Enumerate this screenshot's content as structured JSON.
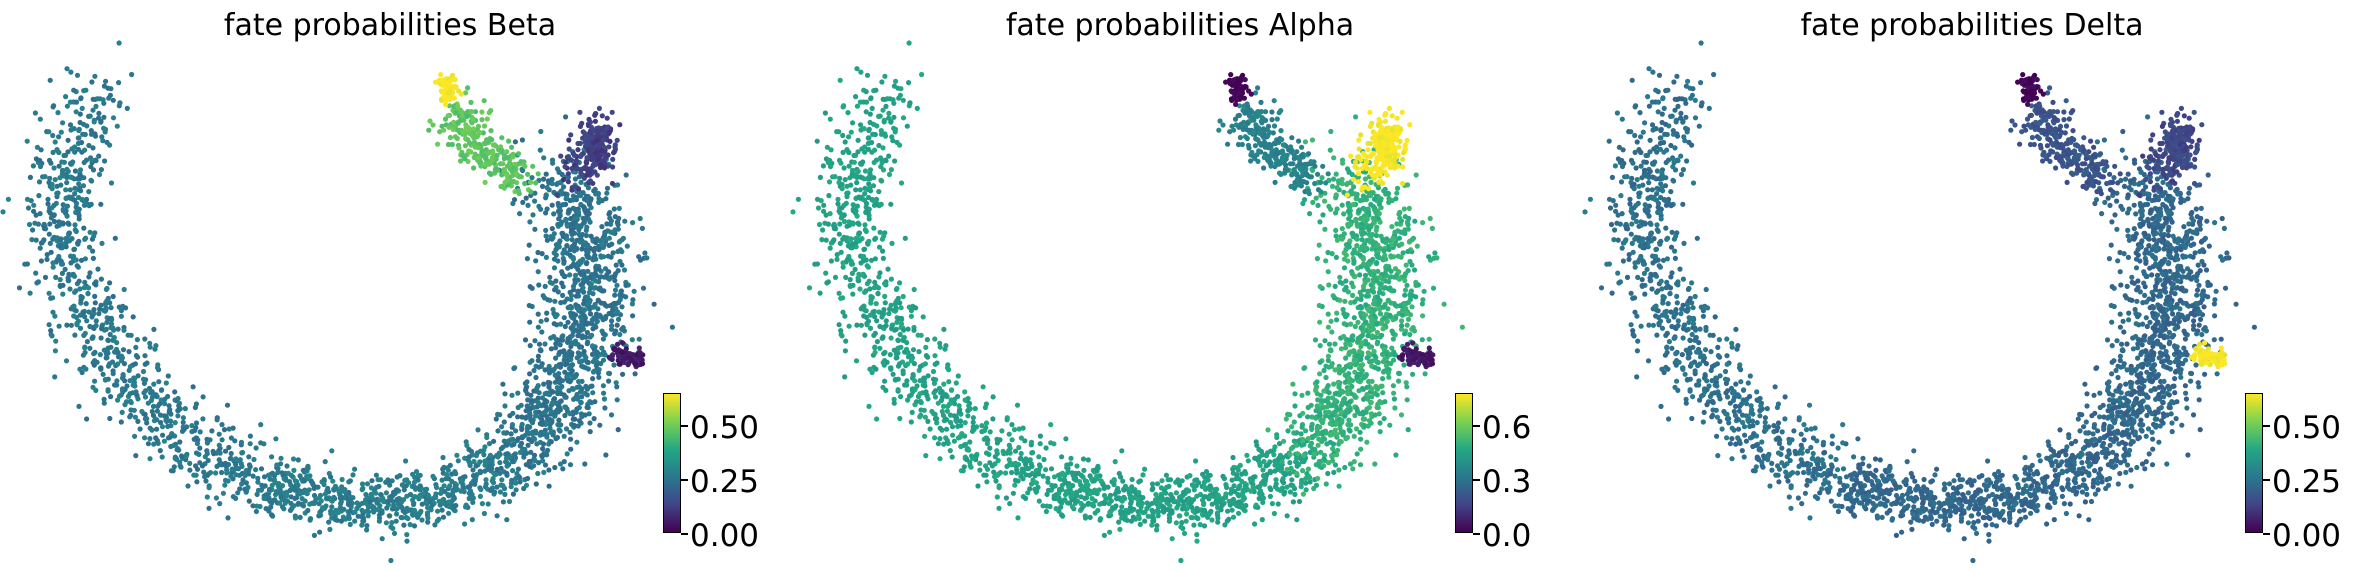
{
  "figure": {
    "panels": [
      {
        "title": "fate probabilities Beta",
        "colorbar": {
          "ticks": [
            "0.00",
            "0.25",
            "0.50"
          ],
          "min": 0,
          "max": 0.65
        },
        "colormap": "viridis"
      },
      {
        "title": "fate probabilities Alpha",
        "colorbar": {
          "ticks": [
            "0.0",
            "0.3",
            "0.6"
          ],
          "min": 0,
          "max": 0.75
        },
        "colormap": "viridis"
      },
      {
        "title": "fate probabilities Delta",
        "colorbar": {
          "ticks": [
            "0.00",
            "0.25",
            "0.50"
          ],
          "min": 0,
          "max": 0.65
        },
        "colormap": "viridis"
      }
    ]
  },
  "chart_data": [
    {
      "type": "scatter",
      "title": "fate probabilities Beta",
      "color_variable": "fate probabilities Beta",
      "color_range": [
        0,
        0.65
      ],
      "colorbar_ticks": [
        0.0,
        0.25,
        0.5
      ],
      "axes": "off",
      "regions": [
        {
          "name": "left arm",
          "value": 0.26
        },
        {
          "name": "bottom arc",
          "value": 0.27
        },
        {
          "name": "right column",
          "value": 0.25
        },
        {
          "name": "top tip",
          "value": 0.65
        },
        {
          "name": "upper branch",
          "value": 0.48
        },
        {
          "name": "right top branch",
          "value": 0.12
        },
        {
          "name": "right small cluster",
          "value": 0.05
        }
      ]
    },
    {
      "type": "scatter",
      "title": "fate probabilities Alpha",
      "color_variable": "fate probabilities Alpha",
      "color_range": [
        0,
        0.75
      ],
      "colorbar_ticks": [
        0.0,
        0.3,
        0.6
      ],
      "axes": "off",
      "regions": [
        {
          "name": "left arm",
          "value": 0.43
        },
        {
          "name": "bottom arc",
          "value": 0.43
        },
        {
          "name": "right column",
          "value": 0.48
        },
        {
          "name": "top tip",
          "value": 0.0
        },
        {
          "name": "upper branch",
          "value": 0.33
        },
        {
          "name": "right top branch",
          "value": 0.75
        },
        {
          "name": "right small cluster",
          "value": 0.05
        }
      ]
    },
    {
      "type": "scatter",
      "title": "fate probabilities Delta",
      "color_variable": "fate probabilities Delta",
      "color_range": [
        0,
        0.65
      ],
      "colorbar_ticks": [
        0.0,
        0.25,
        0.5
      ],
      "axes": "off",
      "regions": [
        {
          "name": "left arm",
          "value": 0.24
        },
        {
          "name": "bottom arc",
          "value": 0.22
        },
        {
          "name": "right column",
          "value": 0.22
        },
        {
          "name": "top tip",
          "value": 0.0
        },
        {
          "name": "upper branch",
          "value": 0.17
        },
        {
          "name": "right top branch",
          "value": 0.14
        },
        {
          "name": "right small cluster",
          "value": 0.65
        }
      ]
    }
  ]
}
